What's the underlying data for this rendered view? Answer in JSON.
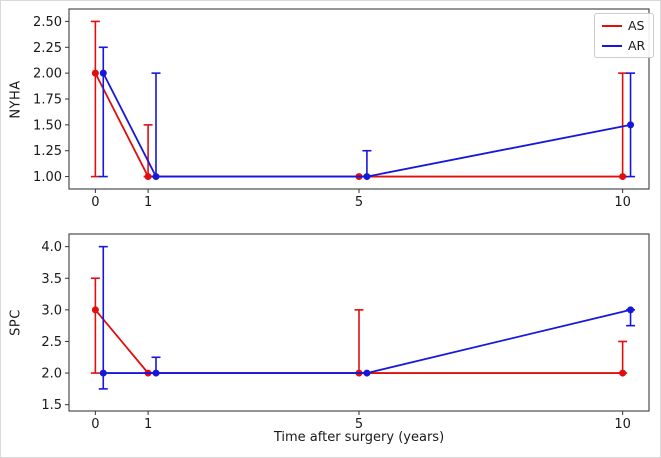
{
  "figure": {
    "background": "#ffffff",
    "axis_color": "#4d4d4d",
    "tick_color": "#333333",
    "text_color": "#1a1a1a"
  },
  "legend": {
    "position": "upper-right",
    "entries": [
      {
        "label": "AS",
        "color": "#e10e0e"
      },
      {
        "label": "AR",
        "color": "#1717dc"
      }
    ]
  },
  "chart_data": [
    {
      "type": "line",
      "ylabel": "NYHA",
      "xlim": [
        -0.5,
        10.5
      ],
      "ylim": [
        0.88,
        2.62
      ],
      "x": [
        0,
        1,
        5,
        10
      ],
      "xtick_labels": [
        "0",
        "1",
        "5",
        "10"
      ],
      "yticks": [
        1.0,
        1.25,
        1.5,
        1.75,
        2.0,
        2.25,
        2.5
      ],
      "ytick_labels": [
        "1.00",
        "1.25",
        "1.50",
        "1.75",
        "2.00",
        "2.25",
        "2.50"
      ],
      "grid": false,
      "legend": "upper-right",
      "series": [
        {
          "name": "AS",
          "color": "#e10e0e",
          "x_offset": 0,
          "y": [
            2.0,
            1.0,
            1.0,
            1.0
          ],
          "err_low": [
            1.0,
            1.0,
            1.0,
            1.0
          ],
          "err_high": [
            2.5,
            1.5,
            1.0,
            2.0
          ]
        },
        {
          "name": "AR",
          "color": "#1717dc",
          "x_offset": 0.15,
          "y": [
            2.0,
            1.0,
            1.0,
            1.5
          ],
          "err_low": [
            1.0,
            1.0,
            1.0,
            1.0
          ],
          "err_high": [
            2.25,
            2.0,
            1.25,
            2.0
          ]
        }
      ]
    },
    {
      "type": "line",
      "ylabel": "SPC",
      "xlabel": "Time after surgery (years)",
      "xlim": [
        -0.5,
        10.5
      ],
      "ylim": [
        1.4,
        4.2
      ],
      "x": [
        0,
        1,
        5,
        10
      ],
      "xtick_labels": [
        "0",
        "1",
        "5",
        "10"
      ],
      "yticks": [
        1.5,
        2.0,
        2.5,
        3.0,
        3.5,
        4.0
      ],
      "ytick_labels": [
        "1.5",
        "2.0",
        "2.5",
        "3.0",
        "3.5",
        "4.0"
      ],
      "grid": false,
      "series": [
        {
          "name": "AS",
          "color": "#e10e0e",
          "x_offset": 0,
          "y": [
            3.0,
            2.0,
            2.0,
            2.0
          ],
          "err_low": [
            2.0,
            2.0,
            2.0,
            2.0
          ],
          "err_high": [
            3.5,
            2.0,
            3.0,
            2.5
          ]
        },
        {
          "name": "AR",
          "color": "#1717dc",
          "x_offset": 0.15,
          "y": [
            2.0,
            2.0,
            2.0,
            3.0
          ],
          "err_low": [
            1.75,
            2.0,
            2.0,
            2.75
          ],
          "err_high": [
            4.0,
            2.25,
            2.0,
            3.0
          ]
        }
      ]
    }
  ]
}
